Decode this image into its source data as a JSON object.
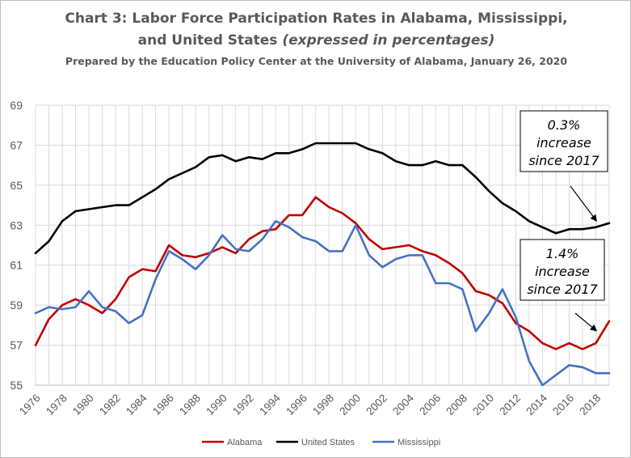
{
  "title_line1": "Chart 3: Labor Force Participation Rates in Alabama, Mississippi,",
  "title_line2_main": "and United States ",
  "title_line2_italic": "(expressed in percentages)",
  "subtitle": "Prepared by the Education Policy Center at the University of Alabama, January 26, 2020",
  "chart_data": {
    "type": "line",
    "x": [
      1976,
      1977,
      1978,
      1979,
      1980,
      1981,
      1982,
      1983,
      1984,
      1985,
      1986,
      1987,
      1988,
      1989,
      1990,
      1991,
      1992,
      1993,
      1994,
      1995,
      1996,
      1997,
      1998,
      1999,
      2000,
      2001,
      2002,
      2003,
      2004,
      2005,
      2006,
      2007,
      2008,
      2009,
      2010,
      2011,
      2012,
      2013,
      2014,
      2015,
      2016,
      2017,
      2018,
      2019
    ],
    "xticks": [
      "1976",
      "1978",
      "1980",
      "1982",
      "1984",
      "1986",
      "1988",
      "1990",
      "1992",
      "1994",
      "1996",
      "1998",
      "2000",
      "2002",
      "2004",
      "2006",
      "2008",
      "2010",
      "2012",
      "2014",
      "2016",
      "2018"
    ],
    "xlim": [
      1976,
      2019
    ],
    "ylim": [
      55,
      69
    ],
    "yticks": [
      "55",
      "57",
      "59",
      "61",
      "63",
      "65",
      "67",
      "69"
    ],
    "grid": true,
    "legend_position": "bottom",
    "series": [
      {
        "name": "Alabama",
        "color": "#c00000",
        "values": [
          57.0,
          58.3,
          59.0,
          59.3,
          59.0,
          58.6,
          59.3,
          60.4,
          60.8,
          60.7,
          62.0,
          61.5,
          61.4,
          61.6,
          61.9,
          61.6,
          62.3,
          62.7,
          62.8,
          63.5,
          63.5,
          64.4,
          63.9,
          63.6,
          63.1,
          62.3,
          61.8,
          61.9,
          62.0,
          61.7,
          61.5,
          61.1,
          60.6,
          59.7,
          59.5,
          59.1,
          58.1,
          57.7,
          57.1,
          56.8,
          57.1,
          56.8,
          57.1,
          58.2
        ]
      },
      {
        "name": "United States",
        "color": "#000000",
        "values": [
          61.6,
          62.2,
          63.2,
          63.7,
          63.8,
          63.9,
          64.0,
          64.0,
          64.4,
          64.8,
          65.3,
          65.6,
          65.9,
          66.4,
          66.5,
          66.2,
          66.4,
          66.3,
          66.6,
          66.6,
          66.8,
          67.1,
          67.1,
          67.1,
          67.1,
          66.8,
          66.6,
          66.2,
          66.0,
          66.0,
          66.2,
          66.0,
          66.0,
          65.4,
          64.7,
          64.1,
          63.7,
          63.2,
          62.9,
          62.6,
          62.8,
          62.8,
          62.9,
          63.1
        ]
      },
      {
        "name": "Mississippi",
        "color": "#4472c4",
        "values": [
          58.6,
          58.9,
          58.8,
          58.9,
          59.7,
          58.9,
          58.7,
          58.1,
          58.5,
          60.3,
          61.7,
          61.3,
          60.8,
          61.5,
          62.5,
          61.8,
          61.7,
          62.3,
          63.2,
          62.9,
          62.4,
          62.2,
          61.7,
          61.7,
          63.0,
          61.5,
          60.9,
          61.3,
          61.5,
          61.5,
          60.1,
          60.1,
          59.8,
          57.7,
          58.6,
          59.8,
          58.4,
          56.2,
          55.0,
          55.5,
          56.0,
          55.9,
          55.6,
          55.6
        ]
      }
    ],
    "annotations": [
      {
        "lines": [
          "0.3%",
          "increase",
          "since 2017"
        ],
        "target_series": "United States",
        "target_x": 2018.3
      },
      {
        "lines": [
          "1.4%",
          "increase",
          "since 2017"
        ],
        "target_series": "Alabama",
        "target_x": 2018.3
      }
    ]
  }
}
